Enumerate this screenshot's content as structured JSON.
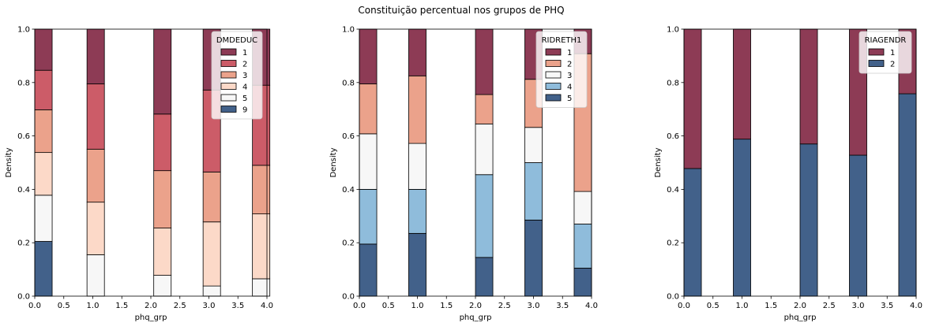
{
  "suptitle": "Constituição percentual nos grupos de PHQ",
  "chart_data": [
    {
      "type": "bar",
      "stacked": true,
      "xlabel": "phq_grp",
      "ylabel": "Density",
      "xlim": [
        0,
        4
      ],
      "ylim": [
        0,
        1
      ],
      "xticks": [
        "0.0",
        "0.5",
        "1.0",
        "1.5",
        "2.0",
        "2.5",
        "3.0",
        "3.5",
        "4.0"
      ],
      "yticks": [
        "0.0",
        "0.2",
        "0.4",
        "0.6",
        "0.8",
        "1.0"
      ],
      "legend": {
        "title": "DMDEDUC",
        "placement": "top-right",
        "entries": [
          "1",
          "2",
          "3",
          "4",
          "5",
          "9"
        ]
      },
      "colors": {
        "1": "#8d3b55",
        "2": "#cc5c68",
        "3": "#eba28b",
        "4": "#fcd9c8",
        "5": "#f7f7f7",
        "9": "#42618a"
      },
      "bar_width": 0.3,
      "bars": [
        {
          "x": 0.0,
          "stack": [
            {
              "category": "9",
              "from": 0.0,
              "to": 0.205
            },
            {
              "category": "5",
              "from": 0.205,
              "to": 0.378
            },
            {
              "category": "4",
              "from": 0.378,
              "to": 0.538
            },
            {
              "category": "3",
              "from": 0.538,
              "to": 0.698
            },
            {
              "category": "2",
              "from": 0.698,
              "to": 0.846
            },
            {
              "category": "1",
              "from": 0.846,
              "to": 1.0
            }
          ]
        },
        {
          "x": 0.9,
          "stack": [
            {
              "category": "5",
              "from": 0.0,
              "to": 0.155
            },
            {
              "category": "4",
              "from": 0.155,
              "to": 0.352
            },
            {
              "category": "3",
              "from": 0.352,
              "to": 0.55
            },
            {
              "category": "2",
              "from": 0.55,
              "to": 0.795
            },
            {
              "category": "1",
              "from": 0.795,
              "to": 1.0
            }
          ]
        },
        {
          "x": 2.05,
          "stack": [
            {
              "category": "5",
              "from": 0.0,
              "to": 0.078
            },
            {
              "category": "4",
              "from": 0.078,
              "to": 0.255
            },
            {
              "category": "3",
              "from": 0.255,
              "to": 0.47
            },
            {
              "category": "2",
              "from": 0.47,
              "to": 0.682
            },
            {
              "category": "1",
              "from": 0.682,
              "to": 1.0
            }
          ]
        },
        {
          "x": 2.9,
          "stack": [
            {
              "category": "5",
              "from": 0.0,
              "to": 0.038
            },
            {
              "category": "4",
              "from": 0.038,
              "to": 0.278
            },
            {
              "category": "3",
              "from": 0.278,
              "to": 0.465
            },
            {
              "category": "2",
              "from": 0.465,
              "to": 0.772
            },
            {
              "category": "1",
              "from": 0.772,
              "to": 1.0
            }
          ]
        },
        {
          "x": 3.75,
          "stack": [
            {
              "category": "5",
              "from": 0.0,
              "to": 0.065
            },
            {
              "category": "4",
              "from": 0.065,
              "to": 0.308
            },
            {
              "category": "3",
              "from": 0.308,
              "to": 0.49
            },
            {
              "category": "2",
              "from": 0.49,
              "to": 0.79
            },
            {
              "category": "1",
              "from": 0.79,
              "to": 1.0
            }
          ]
        }
      ]
    },
    {
      "type": "bar",
      "stacked": true,
      "xlabel": "phq_grp",
      "ylabel": "Density",
      "xlim": [
        0,
        4
      ],
      "ylim": [
        0,
        1
      ],
      "xticks": [
        "0.0",
        "0.5",
        "1.0",
        "1.5",
        "2.0",
        "2.5",
        "3.0",
        "3.5",
        "4.0"
      ],
      "yticks": [
        "0.0",
        "0.2",
        "0.4",
        "0.6",
        "0.8",
        "1.0"
      ],
      "legend": {
        "title": "RIDRETH1",
        "placement": "top-right",
        "entries": [
          "1",
          "2",
          "3",
          "4",
          "5"
        ]
      },
      "colors": {
        "1": "#8d3b55",
        "2": "#eba28b",
        "3": "#f7f7f7",
        "4": "#8fbcdb",
        "5": "#42618a"
      },
      "bar_width": 0.3,
      "bars": [
        {
          "x": 0.0,
          "stack": [
            {
              "category": "5",
              "from": 0.0,
              "to": 0.195
            },
            {
              "category": "4",
              "from": 0.195,
              "to": 0.4
            },
            {
              "category": "3",
              "from": 0.4,
              "to": 0.608
            },
            {
              "category": "2",
              "from": 0.608,
              "to": 0.795
            },
            {
              "category": "1",
              "from": 0.795,
              "to": 1.0
            }
          ]
        },
        {
          "x": 0.85,
          "stack": [
            {
              "category": "5",
              "from": 0.0,
              "to": 0.235
            },
            {
              "category": "4",
              "from": 0.235,
              "to": 0.4
            },
            {
              "category": "3",
              "from": 0.4,
              "to": 0.572
            },
            {
              "category": "2",
              "from": 0.572,
              "to": 0.825
            },
            {
              "category": "1",
              "from": 0.825,
              "to": 1.0
            }
          ]
        },
        {
          "x": 2.0,
          "stack": [
            {
              "category": "5",
              "from": 0.0,
              "to": 0.145
            },
            {
              "category": "4",
              "from": 0.145,
              "to": 0.455
            },
            {
              "category": "3",
              "from": 0.455,
              "to": 0.645
            },
            {
              "category": "2",
              "from": 0.645,
              "to": 0.755
            },
            {
              "category": "1",
              "from": 0.755,
              "to": 1.0
            }
          ]
        },
        {
          "x": 2.85,
          "stack": [
            {
              "category": "5",
              "from": 0.0,
              "to": 0.285
            },
            {
              "category": "4",
              "from": 0.285,
              "to": 0.5
            },
            {
              "category": "3",
              "from": 0.5,
              "to": 0.632
            },
            {
              "category": "2",
              "from": 0.632,
              "to": 0.812
            },
            {
              "category": "1",
              "from": 0.812,
              "to": 1.0
            }
          ]
        },
        {
          "x": 3.7,
          "stack": [
            {
              "category": "5",
              "from": 0.0,
              "to": 0.105
            },
            {
              "category": "4",
              "from": 0.105,
              "to": 0.27
            },
            {
              "category": "3",
              "from": 0.27,
              "to": 0.392
            },
            {
              "category": "2",
              "from": 0.392,
              "to": 0.908
            },
            {
              "category": "1",
              "from": 0.908,
              "to": 1.0
            }
          ]
        }
      ]
    },
    {
      "type": "bar",
      "stacked": true,
      "xlabel": "phq_grp",
      "ylabel": "Density",
      "xlim": [
        0,
        4
      ],
      "ylim": [
        0,
        1
      ],
      "xticks": [
        "0.0",
        "0.5",
        "1.0",
        "1.5",
        "2.0",
        "2.5",
        "3.0",
        "3.5",
        "4.0"
      ],
      "yticks": [
        "0.0",
        "0.2",
        "0.4",
        "0.6",
        "0.8",
        "1.0"
      ],
      "legend": {
        "title": "RIAGENDR",
        "placement": "top-right",
        "entries": [
          "1",
          "2"
        ]
      },
      "colors": {
        "1": "#8d3b55",
        "2": "#42618a"
      },
      "bar_width": 0.3,
      "bars": [
        {
          "x": 0.0,
          "stack": [
            {
              "category": "2",
              "from": 0.0,
              "to": 0.478
            },
            {
              "category": "1",
              "from": 0.478,
              "to": 1.0
            }
          ]
        },
        {
          "x": 0.85,
          "stack": [
            {
              "category": "2",
              "from": 0.0,
              "to": 0.588
            },
            {
              "category": "1",
              "from": 0.588,
              "to": 1.0
            }
          ]
        },
        {
          "x": 2.0,
          "stack": [
            {
              "category": "2",
              "from": 0.0,
              "to": 0.57
            },
            {
              "category": "1",
              "from": 0.57,
              "to": 1.0
            }
          ]
        },
        {
          "x": 2.85,
          "stack": [
            {
              "category": "2",
              "from": 0.0,
              "to": 0.528
            },
            {
              "category": "1",
              "from": 0.528,
              "to": 1.0
            }
          ]
        },
        {
          "x": 3.7,
          "stack": [
            {
              "category": "2",
              "from": 0.0,
              "to": 0.758
            },
            {
              "category": "1",
              "from": 0.758,
              "to": 1.0
            }
          ]
        }
      ]
    }
  ]
}
